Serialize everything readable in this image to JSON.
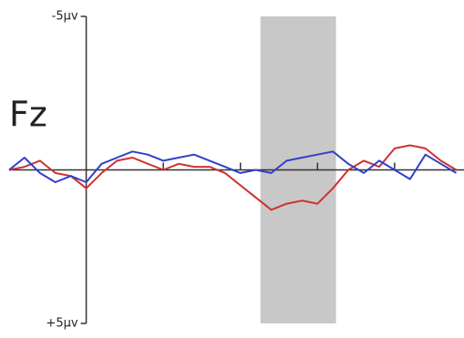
{
  "chart_data": {
    "type": "line",
    "label": "Fz",
    "x": [
      -100,
      -80,
      -60,
      -40,
      -20,
      0,
      20,
      40,
      60,
      80,
      100,
      120,
      140,
      160,
      180,
      200,
      220,
      240,
      260,
      280,
      300,
      320,
      340,
      360,
      380,
      400,
      420,
      440,
      460,
      480
    ],
    "series": [
      {
        "color": "#d03030",
        "values": [
          0,
          -0.1,
          -0.3,
          0.1,
          0.2,
          0.6,
          0.1,
          -0.3,
          -0.4,
          -0.2,
          0,
          -0.2,
          -0.1,
          -0.1,
          0.1,
          0.5,
          0.9,
          1.3,
          1.1,
          1.0,
          1.1,
          0.6,
          0,
          -0.3,
          -0.1,
          -0.7,
          -0.8,
          -0.7,
          -0.3,
          0
        ]
      },
      {
        "color": "#3040c8",
        "values": [
          0,
          -0.4,
          0.1,
          0.4,
          0.2,
          0.4,
          -0.2,
          -0.4,
          -0.6,
          -0.5,
          -0.3,
          -0.4,
          -0.5,
          -0.3,
          -0.1,
          0.1,
          0,
          0.1,
          -0.3,
          -0.4,
          -0.5,
          -0.6,
          -0.2,
          0.1,
          -0.3,
          0,
          0.3,
          -0.5,
          -0.2,
          0.1
        ]
      }
    ],
    "shaded_region": [
      226,
      324
    ],
    "shade_color": "#c8c8c8",
    "xlim": [
      -100,
      490
    ],
    "xticks": [
      100,
      200,
      300,
      400
    ],
    "ylim": [
      -5,
      5
    ],
    "y_inverted": true,
    "yticks": [
      {
        "value": -5,
        "label": "-5µv"
      },
      {
        "value": 5,
        "label": "+5µv"
      }
    ]
  }
}
